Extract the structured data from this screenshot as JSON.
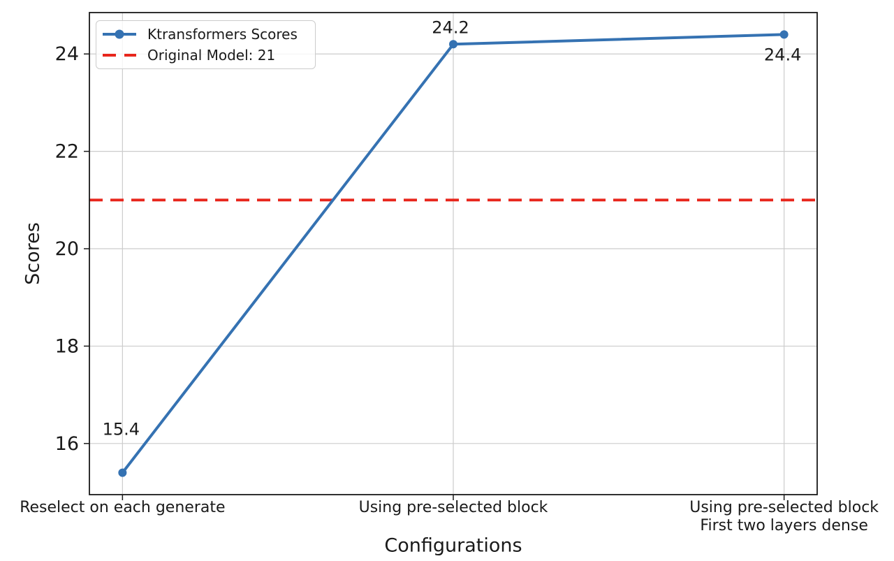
{
  "figure": {
    "background": "#ffffff",
    "text_color": "#1a1a1a"
  },
  "chart_data": {
    "type": "line",
    "title": "",
    "xlabel": "Configurations",
    "ylabel": "Scores",
    "categories": [
      "Reselect on each generate",
      "Using pre-selected block",
      "Using pre-selected block\nFirst two layers dense"
    ],
    "series": [
      {
        "name": "Ktransformers Scores",
        "values": [
          15.4,
          24.2,
          24.4
        ],
        "color": "#3572b2",
        "marker": "circle",
        "style": "solid"
      }
    ],
    "ref_line": {
      "label": "Original Model: 21",
      "value": 21,
      "color": "#e8261c",
      "style": "dashed"
    },
    "data_labels": [
      "15.4",
      "24.2",
      "24.4"
    ],
    "yticks": [
      16,
      18,
      20,
      22,
      24
    ],
    "ylim": [
      14.95,
      24.85
    ],
    "xlim": [
      -0.1,
      2.1
    ],
    "grid": true,
    "grid_color": "#cccccc",
    "spine_color": "#1a1a1a",
    "legend": {
      "position": "upper-left",
      "entries": [
        "Ktransformers Scores",
        "Original Model: 21"
      ]
    }
  }
}
